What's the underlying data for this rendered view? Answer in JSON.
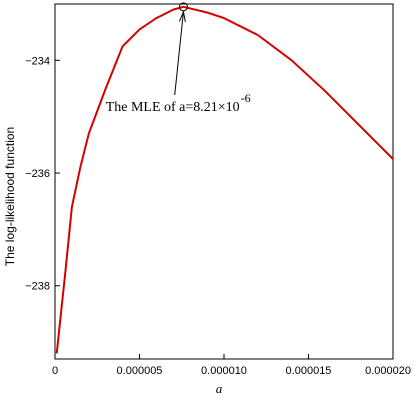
{
  "chart_data": {
    "type": "line",
    "xlabel": "a",
    "ylabel": "The log-likelihood function",
    "xlim": [
      0,
      2e-05
    ],
    "ylim": [
      -239.3,
      -233
    ],
    "x_ticks": [
      0,
      5e-06,
      1e-05,
      1.5e-05,
      2e-05
    ],
    "x_tick_labels": [
      "0",
      "0.000005",
      "0.000010",
      "0.000015",
      "0.000020"
    ],
    "y_ticks": [
      -234,
      -236,
      -238
    ],
    "y_tick_labels": [
      "−234",
      "−236",
      "−238"
    ],
    "grid": false,
    "series": [
      {
        "color": "#d40000",
        "x": [
          1e-07,
          6e-07,
          1e-06,
          1.5e-06,
          2e-06,
          3e-06,
          4e-06,
          5e-06,
          6e-06,
          7e-06,
          7.6e-06,
          9e-06,
          1e-05,
          1.2e-05,
          1.4e-05,
          1.6e-05,
          1.8e-05,
          2e-05
        ],
        "y": [
          -239.2,
          -237.8,
          -236.6,
          -235.9,
          -235.3,
          -234.5,
          -233.75,
          -233.45,
          -233.25,
          -233.1,
          -233.05,
          -233.15,
          -233.25,
          -233.55,
          -234.0,
          -234.55,
          -235.15,
          -235.75
        ]
      }
    ],
    "annotation": {
      "text": "The MLE of a=8.21×10",
      "superscript": "-6",
      "point": {
        "x": 7.6e-06,
        "y": -233.05
      },
      "text_anchor": {
        "x": 3e-06,
        "y": -234.9
      }
    }
  }
}
